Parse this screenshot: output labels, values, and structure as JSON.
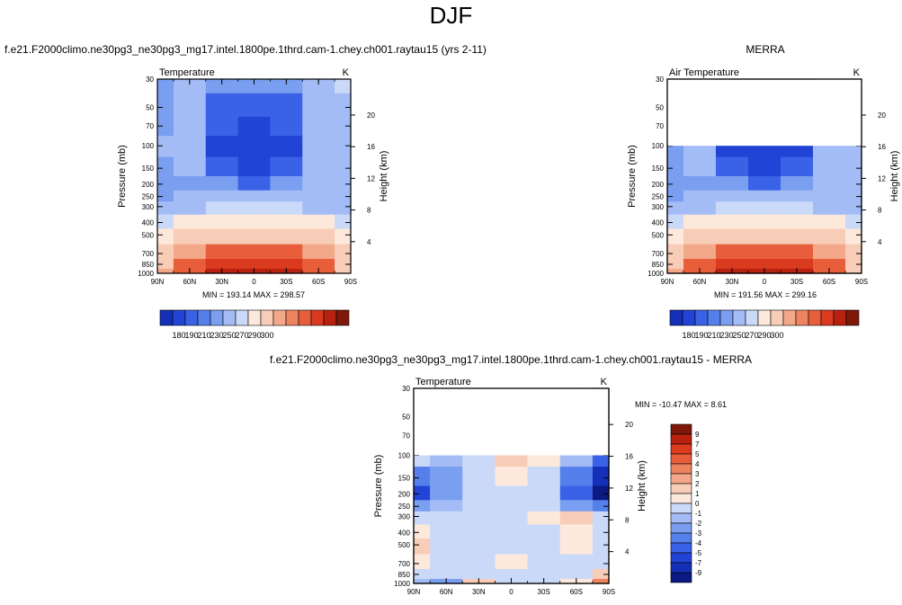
{
  "main_title": "DJF",
  "panels": {
    "model": {
      "case_title": "f.e21.F2000climo.ne30pg3_ne30pg3_mg17.intel.1800pe.1thrd.cam-1.chey.ch001.raytau15 (yrs 2-11)",
      "left_label": "Temperature",
      "right_label": "K",
      "stats": "MIN = 193.14  MAX = 298.57"
    },
    "obs": {
      "case_title": "MERRA",
      "left_label": "Air Temperature",
      "right_label": "K",
      "stats": "MIN = 191.56  MAX = 299.16"
    },
    "diff": {
      "case_title": "f.e21.F2000climo.ne30pg3_ne30pg3_mg17.intel.1800pe.1thrd.cam-1.chey.ch001.raytau15 - MERRA",
      "left_label": "Temperature",
      "right_label": "K",
      "stats": "MIN = -10.47  MAX =   8.61"
    }
  },
  "axes": {
    "x_ticks": [
      "90N",
      "60N",
      "30N",
      "0",
      "30S",
      "60S",
      "90S"
    ],
    "y_label": "Pressure (mb)",
    "y_ticks": [
      "30",
      "50",
      "70",
      "100",
      "150",
      "200",
      "250",
      "300",
      "400",
      "500",
      "700",
      "850",
      "1000"
    ],
    "y2_label": "Height (km)",
    "y2_ticks": [
      "20",
      "16",
      "12",
      "8",
      "4"
    ]
  },
  "colorbars": {
    "abs_labels": [
      "180",
      "190",
      "210",
      "230",
      "250",
      "270",
      "290",
      "300"
    ],
    "abs_colors": [
      "#0a1a82",
      "#1530b8",
      "#2244d6",
      "#3a62e6",
      "#5580ec",
      "#7a9ef0",
      "#a3bcf5",
      "#cbd9f9",
      "#fde8dc",
      "#f8cdb8",
      "#f3a889",
      "#ee8360",
      "#e85e3b",
      "#da3b1f",
      "#b82010",
      "#7e1808"
    ],
    "diff_labels": [
      "9",
      "7",
      "5",
      "4",
      "3",
      "2",
      "1",
      "0",
      "-1",
      "-2",
      "-3",
      "-4",
      "-5",
      "-7",
      "-9"
    ],
    "diff_colors": [
      "#7e1808",
      "#b82010",
      "#da3b1f",
      "#e85e3b",
      "#ee8360",
      "#f3a889",
      "#f8cdb8",
      "#fde8dc",
      "#cbd9f9",
      "#a3bcf5",
      "#7a9ef0",
      "#5580ec",
      "#3a62e6",
      "#2244d6",
      "#1530b8",
      "#0a1a82"
    ]
  },
  "chart_data": [
    {
      "type": "heatmap",
      "title": "Temperature",
      "units": "K",
      "x": [
        "90N",
        "60N",
        "30N",
        "0",
        "30S",
        "60S",
        "90S"
      ],
      "y": [
        30,
        50,
        70,
        100,
        150,
        200,
        250,
        300,
        400,
        500,
        700,
        850,
        1000
      ],
      "xlabel": "",
      "ylabel": "Pressure (mb)",
      "y2label": "Height (km)",
      "min": 193.14,
      "max": 298.57,
      "values": [
        [
          210,
          220,
          215,
          210,
          215,
          225,
          232
        ],
        [
          215,
          222,
          205,
          200,
          205,
          222,
          225
        ],
        [
          218,
          222,
          200,
          195,
          200,
          222,
          225
        ],
        [
          220,
          222,
          198,
          194,
          198,
          222,
          225
        ],
        [
          218,
          220,
          202,
          198,
          202,
          222,
          225
        ],
        [
          217,
          218,
          212,
          208,
          212,
          222,
          224
        ],
        [
          218,
          220,
          220,
          220,
          220,
          222,
          222
        ],
        [
          225,
          228,
          230,
          230,
          230,
          228,
          225
        ],
        [
          235,
          240,
          244,
          245,
          244,
          240,
          235
        ],
        [
          242,
          250,
          256,
          258,
          256,
          250,
          242
        ],
        [
          250,
          262,
          275,
          278,
          275,
          262,
          250
        ],
        [
          255,
          270,
          285,
          288,
          285,
          270,
          250
        ],
        [
          260,
          278,
          292,
          295,
          292,
          275,
          250
        ]
      ]
    },
    {
      "type": "heatmap",
      "title": "Air Temperature",
      "units": "K",
      "x": [
        "90N",
        "60N",
        "30N",
        "0",
        "30S",
        "60S",
        "90S"
      ],
      "y": [
        100,
        150,
        200,
        250,
        300,
        400,
        500,
        700,
        850,
        1000
      ],
      "xlabel": "",
      "ylabel": "Pressure (mb)",
      "y2label": "Height (km)",
      "min": 191.56,
      "max": 299.16,
      "values": [
        [
          218,
          222,
          198,
          194,
          198,
          222,
          226
        ],
        [
          215,
          220,
          202,
          198,
          202,
          222,
          225
        ],
        [
          214,
          218,
          212,
          208,
          212,
          222,
          224
        ],
        [
          216,
          220,
          220,
          220,
          220,
          222,
          222
        ],
        [
          225,
          228,
          230,
          230,
          230,
          228,
          225
        ],
        [
          235,
          240,
          244,
          245,
          244,
          240,
          235
        ],
        [
          242,
          250,
          256,
          258,
          256,
          250,
          242
        ],
        [
          250,
          262,
          275,
          278,
          275,
          262,
          250
        ],
        [
          255,
          270,
          285,
          288,
          285,
          270,
          250
        ],
        [
          260,
          278,
          292,
          296,
          292,
          275,
          250
        ]
      ]
    },
    {
      "type": "heatmap",
      "title": "Temperature",
      "units": "K",
      "x": [
        "90N",
        "60N",
        "30N",
        "0",
        "30S",
        "60S",
        "90S"
      ],
      "y": [
        100,
        150,
        200,
        250,
        300,
        400,
        500,
        700,
        850,
        1000
      ],
      "xlabel": "",
      "ylabel": "Pressure (mb)",
      "y2label": "Height (km)",
      "min": -10.47,
      "max": 8.61,
      "values": [
        [
          -1,
          -2,
          -1,
          1,
          0,
          -2,
          -5
        ],
        [
          -4,
          -3,
          -1,
          0,
          -1,
          -4,
          -8
        ],
        [
          -6,
          -3,
          -1,
          -1,
          -1,
          -5,
          -10
        ],
        [
          -3,
          -2,
          -1,
          -1,
          -1,
          -3,
          -4
        ],
        [
          -1,
          -1,
          -1,
          -1,
          0,
          1,
          -1
        ],
        [
          0,
          -1,
          -1,
          -1,
          -1,
          0,
          -1
        ],
        [
          1,
          -1,
          -1,
          -1,
          -1,
          0,
          -1
        ],
        [
          0,
          -1,
          -1,
          0,
          -1,
          -1,
          -1
        ],
        [
          -1,
          -1,
          -1,
          -1,
          -1,
          -1,
          1
        ],
        [
          -2,
          -3,
          1,
          -1,
          -1,
          0,
          3
        ]
      ]
    }
  ]
}
